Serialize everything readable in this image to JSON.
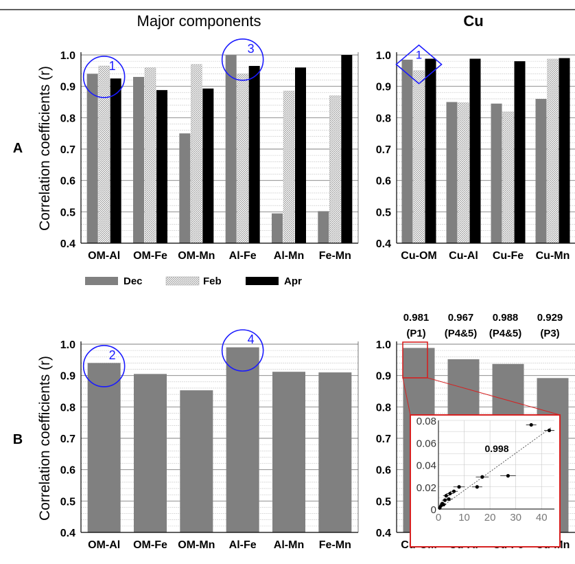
{
  "colors": {
    "dec": "#808080",
    "apr": "#000000",
    "feb_hatch": "#a0a0a0",
    "grid": "#9a9a9a",
    "annotation": "#1a1aff",
    "highlight": "#d62020"
  },
  "headers": {
    "major": "Major components",
    "cu": "Cu"
  },
  "row_labels": {
    "a": "A",
    "b": "B"
  },
  "ylabel": "Correlation coefficients (r)",
  "legend": {
    "dec": "Dec",
    "feb": "Feb",
    "apr": "Apr"
  },
  "inset_annotation": "0.998",
  "chart_data": [
    {
      "id": "A-major",
      "type": "bar",
      "title": "Major components",
      "ylabel": "Correlation coefficients (r)",
      "ylim": [
        0.4,
        1.0
      ],
      "yticks": [
        "0.4",
        "0.5",
        "0.6",
        "0.7",
        "0.8",
        "0.9",
        "1.0"
      ],
      "grid": true,
      "categories": [
        "OM-Al",
        "OM-Fe",
        "OM-Mn",
        "Al-Fe",
        "Al-Mn",
        "Fe-Mn"
      ],
      "series": [
        {
          "name": "Dec",
          "values": [
            0.94,
            0.93,
            0.75,
            1.0,
            0.495,
            0.502
          ]
        },
        {
          "name": "Feb",
          "values": [
            0.965,
            0.96,
            0.97,
            0.94,
            0.885,
            0.87
          ]
        },
        {
          "name": "Apr",
          "values": [
            0.925,
            0.888,
            0.893,
            0.965,
            0.96,
            1.0
          ]
        }
      ],
      "annotations": [
        {
          "label": "1",
          "category": "OM-Al",
          "value": 0.93
        },
        {
          "label": "3",
          "category": "Al-Fe",
          "value": 0.985
        }
      ]
    },
    {
      "id": "A-cu",
      "type": "bar",
      "title": "Cu",
      "ylim": [
        0.4,
        1.0
      ],
      "yticks": [
        "0.4",
        "0.5",
        "0.6",
        "0.7",
        "0.8",
        "0.9",
        "1.0"
      ],
      "grid": true,
      "categories": [
        "Cu-OM",
        "Cu-Al",
        "Cu-Fe",
        "Cu-Mn"
      ],
      "series": [
        {
          "name": "Dec",
          "values": [
            0.985,
            0.85,
            0.845,
            0.86
          ]
        },
        {
          "name": "Feb",
          "values": [
            0.95,
            0.848,
            0.818,
            0.987
          ]
        },
        {
          "name": "Apr",
          "values": [
            0.988,
            0.988,
            0.98,
            0.99
          ]
        }
      ],
      "annotations": [
        {
          "label": "1",
          "category": "Cu-OM",
          "value": 0.97
        }
      ]
    },
    {
      "id": "B-major",
      "type": "bar",
      "ylabel": "Correlation coefficients (r)",
      "ylim": [
        0.4,
        1.0
      ],
      "yticks": [
        "0.4",
        "0.5",
        "0.6",
        "0.7",
        "0.8",
        "0.9",
        "1.0"
      ],
      "grid": true,
      "categories": [
        "OM-Al",
        "OM-Fe",
        "OM-Mn",
        "Al-Fe",
        "Al-Mn",
        "Fe-Mn"
      ],
      "series": [
        {
          "values": [
            0.94,
            0.905,
            0.853,
            0.99,
            0.912,
            0.91
          ]
        }
      ],
      "annotations": [
        {
          "label": "2",
          "category": "OM-Al",
          "value": 0.93
        },
        {
          "label": "4",
          "category": "Al-Fe",
          "value": 0.98
        }
      ]
    },
    {
      "id": "B-cu",
      "type": "bar",
      "ylim": [
        0.4,
        1.0
      ],
      "yticks": [
        "0.4",
        "0.5",
        "0.6",
        "0.7",
        "0.8",
        "0.9",
        "1.0"
      ],
      "grid": true,
      "categories": [
        "Cu-OM",
        "Cu-Al",
        "Cu-Fe",
        "Cu-Mn"
      ],
      "series": [
        {
          "values": [
            0.988,
            0.952,
            0.937,
            0.892
          ]
        }
      ],
      "top_labels": [
        {
          "value": "0.981",
          "note": "(P1)"
        },
        {
          "value": "0.967",
          "note": "(P4&5)"
        },
        {
          "value": "0.988",
          "note": "(P4&5)"
        },
        {
          "value": "0.929",
          "note": "(P3)"
        }
      ]
    },
    {
      "id": "B-cu-inset",
      "type": "scatter",
      "xlim": [
        0,
        45
      ],
      "ylim": [
        0,
        0.08
      ],
      "xticks": [
        "0",
        "10",
        "20",
        "30",
        "40"
      ],
      "yticks": [
        "0",
        "0.02",
        "0.04",
        "0.06",
        "0.08"
      ],
      "grid": true,
      "annotation": "0.998",
      "points": [
        {
          "x": 0.5,
          "y": 0.001,
          "xerr": 0.6,
          "yerr": 0.001
        },
        {
          "x": 1.0,
          "y": 0.003,
          "xerr": 0.8,
          "yerr": 0.001
        },
        {
          "x": 1.5,
          "y": 0.005,
          "xerr": 1.0,
          "yerr": 0.001
        },
        {
          "x": 2.0,
          "y": 0.004,
          "xerr": 1.0,
          "yerr": 0.001
        },
        {
          "x": 2.5,
          "y": 0.008,
          "xerr": 1.2,
          "yerr": 0.001
        },
        {
          "x": 3.0,
          "y": 0.012,
          "xerr": 1.2,
          "yerr": 0.001
        },
        {
          "x": 4.0,
          "y": 0.009,
          "xerr": 1.3,
          "yerr": 0.001
        },
        {
          "x": 4.5,
          "y": 0.014,
          "xerr": 1.4,
          "yerr": 0.001
        },
        {
          "x": 6.0,
          "y": 0.016,
          "xerr": 1.5,
          "yerr": 0.001
        },
        {
          "x": 8.0,
          "y": 0.02,
          "xerr": 2.2,
          "yerr": 0.001
        },
        {
          "x": 15.0,
          "y": 0.02,
          "xerr": 2.0,
          "yerr": 0.001
        },
        {
          "x": 17.0,
          "y": 0.029,
          "xerr": 2.5,
          "yerr": 0.0015
        },
        {
          "x": 27.0,
          "y": 0.03,
          "xerr": 3.0,
          "yerr": 0.0015
        },
        {
          "x": 36.0,
          "y": 0.076,
          "xerr": 2.0,
          "yerr": 0.0015
        },
        {
          "x": 43.0,
          "y": 0.071,
          "xerr": 2.0,
          "yerr": 0.0015
        }
      ]
    }
  ]
}
